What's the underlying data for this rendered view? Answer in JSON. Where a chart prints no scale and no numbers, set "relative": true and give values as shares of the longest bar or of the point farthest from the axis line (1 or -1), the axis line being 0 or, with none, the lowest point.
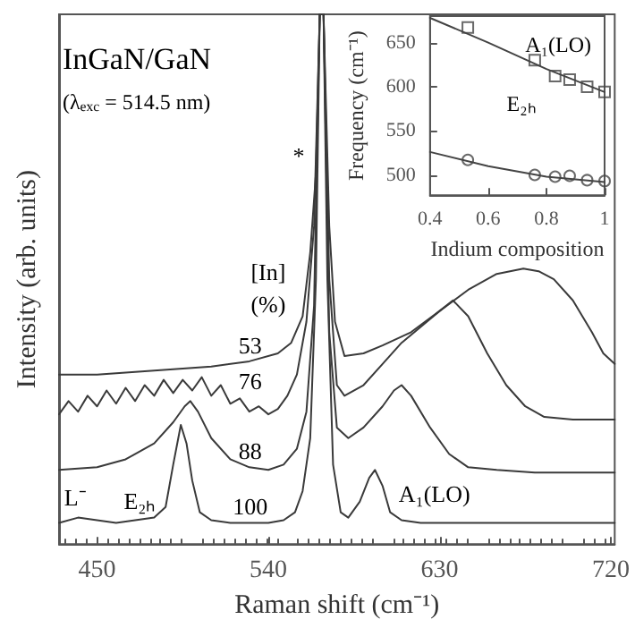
{
  "chart_data": [
    {
      "type": "line",
      "relative": true,
      "xlabel": "Raman shift (cm⁻¹)",
      "ylabel": "Intensity (arb. units)",
      "xlim": [
        430,
        722
      ],
      "xticks": [
        450,
        540,
        630,
        720
      ],
      "marker": "none",
      "line_style": "solid",
      "series": [
        {
          "color": "#3a3a3a",
          "x": [
            430,
            440,
            450,
            460,
            470,
            480,
            486,
            490,
            494,
            497,
            500,
            504,
            510,
            520,
            530,
            540,
            548,
            554,
            558,
            562,
            565,
            567,
            569,
            571,
            574,
            578,
            582,
            588,
            593,
            596,
            600,
            604,
            610,
            620,
            640,
            660,
            680,
            700,
            722
          ],
          "values": [
            0.04,
            0.05,
            0.045,
            0.04,
            0.045,
            0.05,
            0.07,
            0.15,
            0.225,
            0.19,
            0.12,
            0.06,
            0.045,
            0.04,
            0.04,
            0.04,
            0.045,
            0.06,
            0.1,
            0.2,
            0.5,
            1,
            1,
            0.5,
            0.15,
            0.06,
            0.05,
            0.08,
            0.125,
            0.14,
            0.11,
            0.06,
            0.045,
            0.04,
            0.04,
            0.04,
            0.04,
            0.04,
            0.04
          ]
        },
        {
          "color": "#3a3a3a",
          "x": [
            430,
            450,
            465,
            480,
            490,
            496,
            499,
            503,
            510,
            520,
            530,
            540,
            548,
            555,
            560,
            564,
            567,
            569,
            572,
            576,
            582,
            590,
            600,
            606,
            610,
            615,
            625,
            635,
            645,
            660,
            680,
            700,
            722
          ],
          "values": [
            0.14,
            0.145,
            0.16,
            0.19,
            0.23,
            0.26,
            0.27,
            0.25,
            0.2,
            0.16,
            0.145,
            0.14,
            0.15,
            0.18,
            0.25,
            0.45,
            1,
            1,
            0.4,
            0.22,
            0.2,
            0.22,
            0.26,
            0.29,
            0.3,
            0.28,
            0.22,
            0.17,
            0.145,
            0.14,
            0.135,
            0.135,
            0.135
          ]
        },
        {
          "color": "#3a3a3a",
          "x": [
            430,
            435,
            440,
            445,
            450,
            455,
            460,
            465,
            470,
            475,
            480,
            485,
            490,
            495,
            500,
            505,
            510,
            515,
            520,
            525,
            530,
            535,
            540,
            545,
            550,
            555,
            560,
            564,
            567,
            569,
            572,
            576,
            580,
            590,
            600,
            610,
            620,
            630,
            637,
            645,
            655,
            665,
            675,
            685,
            700,
            722
          ],
          "values": [
            0.245,
            0.27,
            0.25,
            0.28,
            0.26,
            0.29,
            0.265,
            0.295,
            0.27,
            0.3,
            0.28,
            0.31,
            0.285,
            0.31,
            0.29,
            0.315,
            0.28,
            0.3,
            0.265,
            0.275,
            0.25,
            0.26,
            0.245,
            0.255,
            0.28,
            0.32,
            0.42,
            0.6,
            1,
            1,
            0.5,
            0.3,
            0.28,
            0.3,
            0.34,
            0.38,
            0.41,
            0.44,
            0.46,
            0.43,
            0.36,
            0.3,
            0.26,
            0.24,
            0.235,
            0.235
          ]
        },
        {
          "color": "#3a3a3a",
          "x": [
            430,
            450,
            470,
            490,
            510,
            530,
            545,
            552,
            558,
            562,
            565,
            567,
            569,
            572,
            575,
            580,
            590,
            600,
            615,
            630,
            645,
            660,
            674,
            682,
            690,
            700,
            710,
            716,
            722
          ],
          "values": [
            0.32,
            0.32,
            0.325,
            0.33,
            0.335,
            0.345,
            0.36,
            0.38,
            0.43,
            0.55,
            0.7,
            1,
            1,
            0.6,
            0.42,
            0.355,
            0.36,
            0.375,
            0.4,
            0.44,
            0.48,
            0.51,
            0.52,
            0.515,
            0.5,
            0.46,
            0.4,
            0.36,
            0.34
          ]
        }
      ],
      "annotations": [
        "InGaN/GaN",
        "(λ$_{exc}$ = 514.5 nm)",
        "[In]",
        "(%)",
        "53",
        "76",
        "88",
        "100",
        "L⁻",
        "E₂ₕ",
        "A₁(LO)",
        "*"
      ]
    },
    {
      "type": "scatter",
      "xlabel": "Indium composition",
      "ylabel": "Frequency (cm⁻¹)",
      "xlim": [
        0.4,
        1.0
      ],
      "xticks": [
        0.4,
        0.6,
        0.8,
        1
      ],
      "ylim": [
        477,
        680
      ],
      "yticks": [
        500,
        550,
        600,
        650
      ],
      "series": [
        {
          "marker": "square",
          "color": "#444444",
          "x": [
            0.53,
            0.76,
            0.83,
            0.88,
            0.94,
            1.0
          ],
          "values": [
            667,
            630,
            612,
            608,
            600,
            594
          ]
        },
        {
          "marker": "circle",
          "color": "#444444",
          "x": [
            0.53,
            0.76,
            0.83,
            0.88,
            0.94,
            1.0
          ],
          "values": [
            517,
            500,
            498,
            499,
            494,
            493
          ]
        },
        {
          "type": "line",
          "marker": "none",
          "color": "#444444",
          "x": [
            0.4,
            0.6,
            0.8,
            1.0
          ],
          "values": [
            678,
            650,
            620,
            594
          ]
        },
        {
          "type": "line",
          "marker": "none",
          "color": "#444444",
          "x": [
            0.4,
            0.6,
            0.8,
            1.0
          ],
          "values": [
            526,
            510,
            498,
            492
          ]
        }
      ],
      "annotations": [
        "A₁(LO)",
        "E₂ₕ"
      ]
    }
  ]
}
